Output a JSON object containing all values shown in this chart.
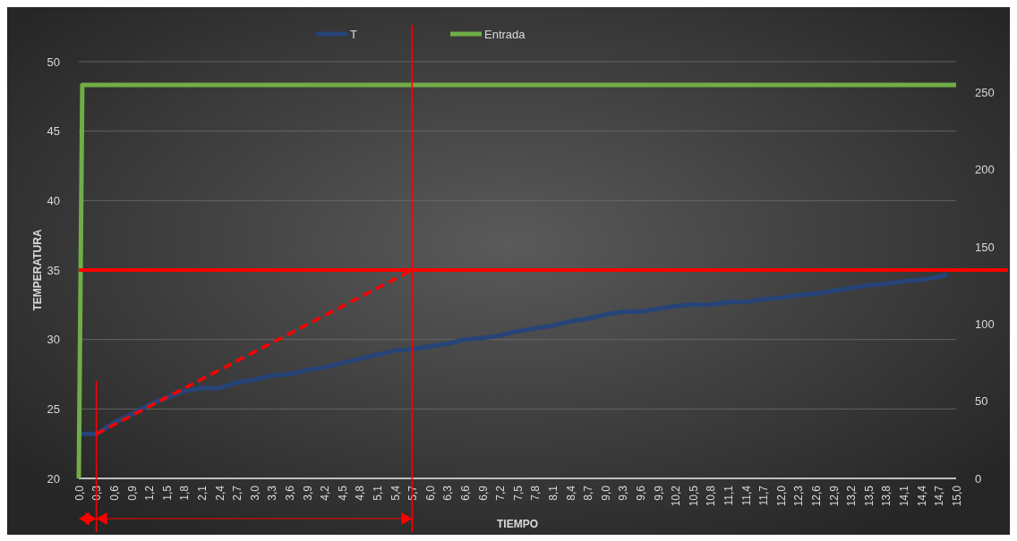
{
  "chart_data": {
    "type": "line",
    "xlabel": "TIEMPO",
    "ylabel": "TEMPERATURA",
    "xlim": [
      0,
      15
    ],
    "xticks": [
      {
        "value": 0,
        "label": "0,0"
      },
      {
        "value": 0.3,
        "label": "0,3"
      },
      {
        "value": 0.6,
        "label": "0,6"
      },
      {
        "value": 0.9,
        "label": "0,9"
      },
      {
        "value": 1.2,
        "label": "1,2"
      },
      {
        "value": 1.5,
        "label": "1,5"
      },
      {
        "value": 1.8,
        "label": "1,8"
      },
      {
        "value": 2.1,
        "label": "2,1"
      },
      {
        "value": 2.4,
        "label": "2,4"
      },
      {
        "value": 2.7,
        "label": "2,7"
      },
      {
        "value": 3,
        "label": "3,0"
      },
      {
        "value": 3.3,
        "label": "3,3"
      },
      {
        "value": 3.6,
        "label": "3,6"
      },
      {
        "value": 3.9,
        "label": "3,9"
      },
      {
        "value": 4.2,
        "label": "4,2"
      },
      {
        "value": 4.5,
        "label": "4,5"
      },
      {
        "value": 4.8,
        "label": "4,8"
      },
      {
        "value": 5.1,
        "label": "5,1"
      },
      {
        "value": 5.4,
        "label": "5,4"
      },
      {
        "value": 5.7,
        "label": "5,7"
      },
      {
        "value": 6,
        "label": "6,0"
      },
      {
        "value": 6.3,
        "label": "6,3"
      },
      {
        "value": 6.6,
        "label": "6,6"
      },
      {
        "value": 6.9,
        "label": "6,9"
      },
      {
        "value": 7.2,
        "label": "7,2"
      },
      {
        "value": 7.5,
        "label": "7,5"
      },
      {
        "value": 7.8,
        "label": "7,8"
      },
      {
        "value": 8.1,
        "label": "8,1"
      },
      {
        "value": 8.4,
        "label": "8,4"
      },
      {
        "value": 8.7,
        "label": "8,7"
      },
      {
        "value": 9,
        "label": "9,0"
      },
      {
        "value": 9.3,
        "label": "9,3"
      },
      {
        "value": 9.6,
        "label": "9,6"
      },
      {
        "value": 9.9,
        "label": "9,9"
      },
      {
        "value": 10.2,
        "label": "10,2"
      },
      {
        "value": 10.5,
        "label": "10,5"
      },
      {
        "value": 10.8,
        "label": "10,8"
      },
      {
        "value": 11.1,
        "label": "11,1"
      },
      {
        "value": 11.4,
        "label": "11,4"
      },
      {
        "value": 11.7,
        "label": "11,7"
      },
      {
        "value": 12,
        "label": "12,0"
      },
      {
        "value": 12.3,
        "label": "12,3"
      },
      {
        "value": 12.6,
        "label": "12,6"
      },
      {
        "value": 12.9,
        "label": "12,9"
      },
      {
        "value": 13.2,
        "label": "13,2"
      },
      {
        "value": 13.5,
        "label": "13,5"
      },
      {
        "value": 13.8,
        "label": "13,8"
      },
      {
        "value": 14.1,
        "label": "14,1"
      },
      {
        "value": 14.4,
        "label": "14,4"
      },
      {
        "value": 14.7,
        "label": "14,7"
      },
      {
        "value": 15,
        "label": "15,0"
      }
    ],
    "ylim": [
      20,
      50
    ],
    "yticks": [
      20,
      25,
      30,
      35,
      40,
      45,
      50
    ],
    "y2lim": [
      0,
      270
    ],
    "y2ticks": [
      0,
      50,
      100,
      150,
      200,
      250
    ],
    "grid": "y",
    "legend": "top",
    "series": [
      {
        "name": "T",
        "color": "#264478",
        "x": [
          0,
          0.3,
          0.6,
          0.9,
          1.2,
          1.5,
          1.8,
          2.1,
          2.4,
          2.7,
          3,
          3.3,
          3.6,
          3.9,
          4.2,
          4.5,
          4.8,
          5.1,
          5.4,
          5.7,
          6,
          6.3,
          6.6,
          6.9,
          7.2,
          7.5,
          7.8,
          8.1,
          8.4,
          8.7,
          9,
          9.3,
          9.6,
          9.9,
          10.2,
          10.5,
          10.8,
          11.1,
          11.4,
          11.7,
          12,
          12.3,
          12.6,
          12.9,
          13.2,
          13.5,
          13.8,
          14.1,
          14.4,
          14.7,
          14.85
        ],
        "values": [
          23.2,
          23.2,
          24.0,
          24.6,
          25.3,
          25.8,
          26.3,
          26.5,
          26.5,
          26.9,
          27.1,
          27.4,
          27.5,
          27.8,
          28.0,
          28.3,
          28.6,
          28.9,
          29.2,
          29.3,
          29.5,
          29.7,
          30.0,
          30.1,
          30.3,
          30.6,
          30.8,
          31.0,
          31.3,
          31.5,
          31.8,
          32.0,
          32.0,
          32.2,
          32.4,
          32.5,
          32.5,
          32.7,
          32.7,
          32.9,
          33.0,
          33.2,
          33.3,
          33.5,
          33.7,
          33.9,
          34.0,
          34.2,
          34.3,
          34.5,
          34.7
        ]
      },
      {
        "name": "Entrada",
        "color": "#70ad47",
        "axis": "y2",
        "x": [
          0,
          0.06,
          15
        ],
        "values": [
          0,
          255,
          255
        ]
      },
      {
        "color": "#ff0000",
        "line_style": "dashed",
        "x": [
          0.3,
          5.7
        ],
        "values": [
          23.2,
          35
        ]
      }
    ],
    "ref_lines": [
      {
        "axis": "y",
        "value": 35,
        "color": "#ff0000"
      },
      {
        "axis": "x",
        "value": 0.3,
        "color": "#ff0000"
      },
      {
        "axis": "x",
        "value": 5.7,
        "color": "#ff0000"
      }
    ]
  }
}
